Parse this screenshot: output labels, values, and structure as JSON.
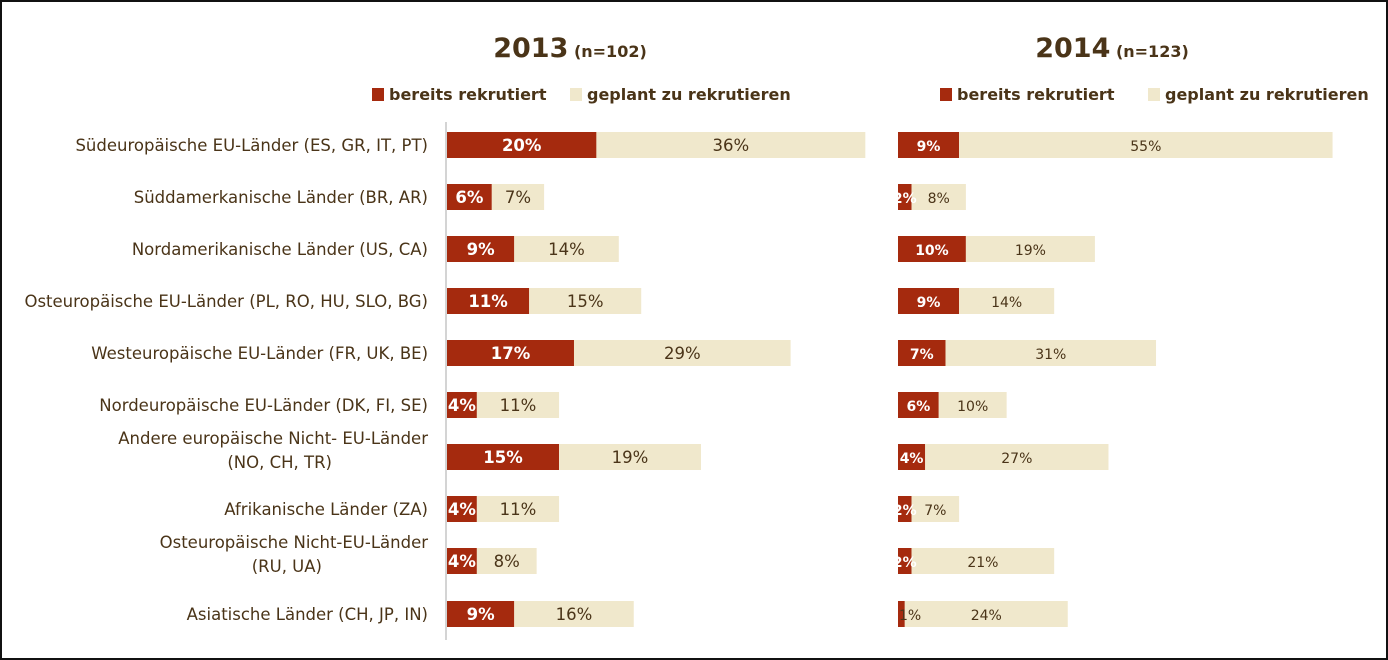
{
  "colors": {
    "recruited": "#a52a0e",
    "planned": "#f0e8cc",
    "text": "#4a3418",
    "axis": "#aaaaaa"
  },
  "chart_data": {
    "type": "bar",
    "orientation": "horizontal",
    "stacked": true,
    "categories": [
      "Südeuropäische EU-Länder (ES, GR, IT, PT)",
      "Süddamerkanische Länder (BR, AR)",
      "Nordamerikanische Länder (US, CA)",
      "Osteuropäische EU-Länder (PL, RO, HU, SLO, BG)",
      "Westeuropäische EU-Länder (FR, UK, BE)",
      "Nordeuropäische EU-Länder (DK, FI, SE)",
      "Andere europäische Nicht- EU-Länder (NO, CH, TR)",
      "Afrikanische Länder (ZA)",
      "Osteuropäische Nicht-EU-Länder (RU, UA)",
      "Asiatische Länder (CH, JP, IN)"
    ],
    "panels": [
      {
        "title": "2013",
        "subtitle": "(n=102)",
        "legend": [
          "bereits rekrutiert",
          "geplant zu rekrutieren"
        ],
        "series": [
          {
            "name": "bereits rekrutiert",
            "values": [
              20,
              6,
              9,
              11,
              17,
              4,
              15,
              4,
              4,
              9
            ]
          },
          {
            "name": "geplant zu rekrutieren",
            "values": [
              36,
              7,
              14,
              15,
              29,
              11,
              19,
              11,
              8,
              16
            ]
          }
        ]
      },
      {
        "title": "2014",
        "subtitle": "(n=123)",
        "legend": [
          "bereits rekrutiert",
          "geplant zu rekrutieren"
        ],
        "series": [
          {
            "name": "bereits rekrutiert",
            "values": [
              9,
              2,
              10,
              9,
              7,
              6,
              4,
              2,
              2,
              1
            ]
          },
          {
            "name": "geplant zu rekrutieren",
            "values": [
              55,
              8,
              19,
              14,
              31,
              10,
              27,
              7,
              21,
              24
            ]
          }
        ]
      }
    ]
  }
}
